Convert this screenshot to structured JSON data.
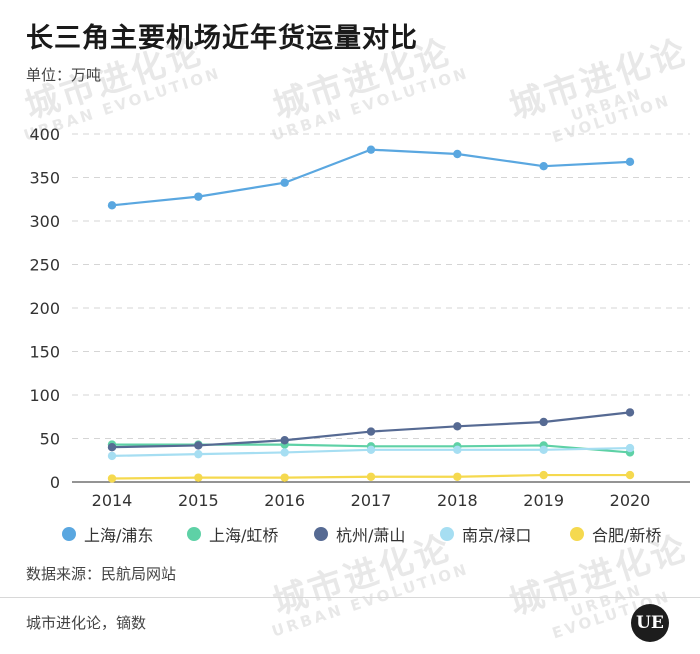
{
  "header": {
    "title": "长三角主要机场近年货运量对比",
    "unit": "单位：万吨"
  },
  "watermark": {
    "cn": "城市进化论",
    "en": "URBAN EVOLUTION"
  },
  "footer": {
    "source": "数据来源：民航局网站",
    "credit": "城市进化论，镝数",
    "logo_text": "UE"
  },
  "chart_data": {
    "type": "line",
    "title": "长三角主要机场近年货运量对比",
    "ylabel": "单位：万吨",
    "xlabel": "",
    "categories": [
      "2014",
      "2015",
      "2016",
      "2017",
      "2018",
      "2019",
      "2020"
    ],
    "ylim": [
      0,
      400
    ],
    "yticks": [
      0,
      50,
      100,
      150,
      200,
      250,
      300,
      350,
      400
    ],
    "grid": true,
    "legend_position": "bottom",
    "series": [
      {
        "name": "上海/浦东",
        "color": "#5aa7e0",
        "values": [
          318,
          328,
          344,
          382,
          377,
          363,
          368
        ]
      },
      {
        "name": "上海/虹桥",
        "color": "#5ed1a6",
        "values": [
          43,
          43,
          43,
          41,
          41,
          42,
          34
        ]
      },
      {
        "name": "杭州/萧山",
        "color": "#566a93",
        "values": [
          40,
          42,
          48,
          58,
          64,
          69,
          80
        ]
      },
      {
        "name": "南京/禄口",
        "color": "#a6def2",
        "values": [
          30,
          32,
          34,
          37,
          37,
          37,
          39
        ]
      },
      {
        "name": "合肥/新桥",
        "color": "#f5d94f",
        "values": [
          4,
          5,
          5,
          6,
          6,
          8,
          8
        ]
      }
    ]
  }
}
